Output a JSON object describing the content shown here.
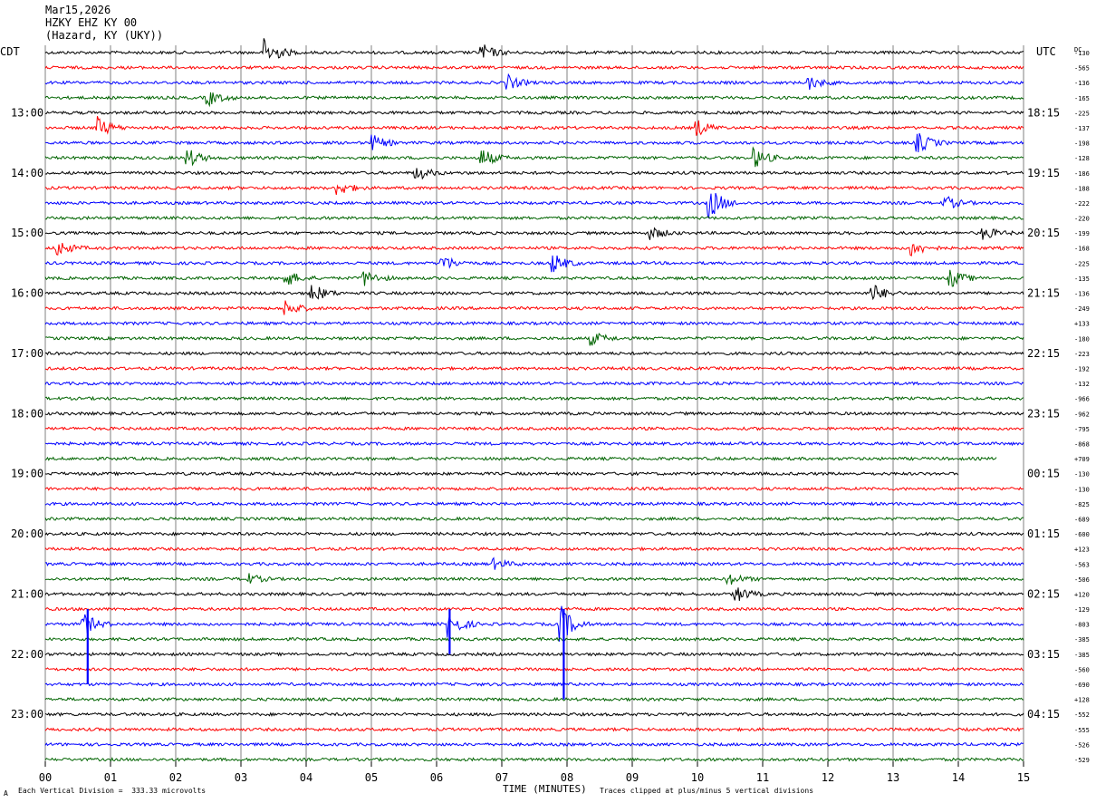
{
  "header": {
    "date": "Mar15,2026",
    "station": "HZKY EHZ KY 00",
    "location": "(Hazard, KY (UKY))"
  },
  "left_tz": "CDT",
  "right_tz": "UTC",
  "dc_label": "DC",
  "footer": {
    "scale": "Each Vertical Division =  333.33 microvolts",
    "clip": "Traces clipped at plus/minus 5 vertical divisions",
    "mark": "A"
  },
  "colors": {
    "black": "#000000",
    "red": "#ff0000",
    "blue": "#0000ff",
    "green": "#006400",
    "grid": "#808080"
  },
  "chart_data": {
    "type": "line",
    "title": "",
    "xlabel": "TIME (MINUTES)",
    "ylabel": "",
    "xlim": [
      0,
      15
    ],
    "x_ticks": [
      "00",
      "01",
      "02",
      "03",
      "04",
      "05",
      "06",
      "07",
      "08",
      "09",
      "10",
      "11",
      "12",
      "13",
      "14",
      "15"
    ],
    "row_count": 48,
    "row_minutes": 15,
    "hour_labels_left": [
      "13:00",
      "14:00",
      "15:00",
      "16:00",
      "17:00",
      "18:00",
      "19:00",
      "20:00",
      "21:00",
      "22:00",
      "23:00"
    ],
    "hour_labels_right": [
      "18:15",
      "19:15",
      "20:15",
      "21:15",
      "22:15",
      "23:15",
      "00:15",
      "01:15",
      "02:15",
      "03:15",
      "04:15"
    ],
    "hour_label_rows": [
      4,
      8,
      12,
      16,
      20,
      24,
      28,
      32,
      36,
      40,
      44
    ],
    "trace_color_cycle": [
      "black",
      "red",
      "blue",
      "green"
    ],
    "dc_offsets": [
      "-130",
      "-565",
      "-136",
      "-165",
      "-225",
      "-137",
      "-198",
      "-128",
      "-186",
      "-188",
      "-222",
      "-220",
      "-199",
      "-168",
      "-225",
      "-135",
      "-136",
      "-249",
      "+133",
      "-180",
      "-223",
      "-192",
      "-132",
      "-966",
      "-962",
      "-795",
      "-868",
      "+709",
      "-130",
      "-130",
      "-825",
      "-689",
      "-600",
      "+123",
      "-563",
      "-506",
      "+120",
      "-129",
      "-803",
      "-385",
      "-385",
      "-560",
      "-690",
      "+128",
      "-552",
      "-555",
      "-526",
      "-529"
    ],
    "events": [
      {
        "row": 0,
        "minute": 3.4,
        "amp": 3.6
      },
      {
        "row": 0,
        "minute": 6.7,
        "amp": 2.2
      },
      {
        "row": 2,
        "minute": 7.1,
        "amp": 1.8
      },
      {
        "row": 2,
        "minute": 11.7,
        "amp": 1.8
      },
      {
        "row": 3,
        "minute": 2.5,
        "amp": 2.0
      },
      {
        "row": 5,
        "minute": 0.8,
        "amp": 2.8
      },
      {
        "row": 5,
        "minute": 10.0,
        "amp": 2.0
      },
      {
        "row": 6,
        "minute": 5.0,
        "amp": 2.2
      },
      {
        "row": 6,
        "minute": 13.4,
        "amp": 2.4
      },
      {
        "row": 7,
        "minute": 2.2,
        "amp": 2.2
      },
      {
        "row": 7,
        "minute": 6.7,
        "amp": 2.4
      },
      {
        "row": 7,
        "minute": 10.9,
        "amp": 2.4
      },
      {
        "row": 8,
        "minute": 5.7,
        "amp": 1.8
      },
      {
        "row": 9,
        "minute": 4.5,
        "amp": 1.8
      },
      {
        "row": 10,
        "minute": 10.2,
        "amp": 4.0
      },
      {
        "row": 10,
        "minute": 13.8,
        "amp": 1.8
      },
      {
        "row": 12,
        "minute": 9.3,
        "amp": 1.6
      },
      {
        "row": 12,
        "minute": 14.4,
        "amp": 1.6
      },
      {
        "row": 13,
        "minute": 0.2,
        "amp": 2.0
      },
      {
        "row": 13,
        "minute": 13.3,
        "amp": 2.0
      },
      {
        "row": 14,
        "minute": 6.1,
        "amp": 2.0
      },
      {
        "row": 14,
        "minute": 7.8,
        "amp": 2.4
      },
      {
        "row": 15,
        "minute": 3.7,
        "amp": 2.0
      },
      {
        "row": 15,
        "minute": 4.9,
        "amp": 2.0
      },
      {
        "row": 15,
        "minute": 13.9,
        "amp": 2.2
      },
      {
        "row": 16,
        "minute": 4.1,
        "amp": 2.4
      },
      {
        "row": 16,
        "minute": 12.7,
        "amp": 2.2
      },
      {
        "row": 17,
        "minute": 3.7,
        "amp": 2.0
      },
      {
        "row": 19,
        "minute": 8.4,
        "amp": 1.6
      },
      {
        "row": 34,
        "minute": 6.9,
        "amp": 1.2
      },
      {
        "row": 35,
        "minute": 3.1,
        "amp": 1.4
      },
      {
        "row": 35,
        "minute": 10.5,
        "amp": 1.4
      },
      {
        "row": 36,
        "minute": 10.6,
        "amp": 2.0
      },
      {
        "row": 38,
        "minute": 0.6,
        "amp": 2.6
      },
      {
        "row": 38,
        "minute": 6.2,
        "amp": 3.2
      },
      {
        "row": 38,
        "minute": 7.9,
        "amp": 5.0
      }
    ],
    "clipped_spikes": [
      {
        "from_row": 37,
        "to_row": 42,
        "minute": 0.65
      },
      {
        "from_row": 37,
        "to_row": 40,
        "minute": 6.2
      },
      {
        "from_row": 37,
        "to_row": 43,
        "minute": 7.95
      }
    ],
    "data_end_minute": 14.0,
    "data_end_row": 28
  }
}
